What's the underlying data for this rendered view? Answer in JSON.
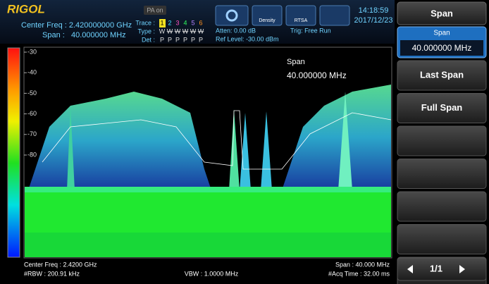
{
  "header": {
    "logo": "RIGOL",
    "center_freq": "Center Freq : 2.420000000 GHz",
    "span": "Span :   40.000000 MHz",
    "pa_button": "PA on",
    "trace": {
      "trace_label": "Trace :",
      "type_label": "Type :",
      "det_label": "Det :",
      "numbers": [
        "1",
        "2",
        "3",
        "4",
        "5",
        "6"
      ],
      "types": [
        "W",
        "W",
        "W",
        "W",
        "W",
        "W"
      ],
      "detectors": [
        "P",
        "P",
        "P",
        "P",
        "P",
        "P"
      ]
    },
    "atten": "Atten: 0.00 dB",
    "ref_level": "Ref Level: -30.00 dBm",
    "trigger": "Trig: Free Run",
    "mode_buttons": [
      "Density",
      "RTSA"
    ],
    "time": "14:18:59",
    "date": "2017/12/23"
  },
  "plot": {
    "y_labels": [
      "-30",
      "-40",
      "-50",
      "-60",
      "-70",
      "-80"
    ],
    "marker_title": "Span",
    "marker_value": "40.000000 MHz"
  },
  "footer": {
    "center_freq": "Center Freq : 2.4200 GHz",
    "rbw": "#RBW : 200.91 kHz",
    "vbw": "VBW : 1.0000 MHz",
    "span": "Span : 40.000 MHz",
    "acq_time": "#Acq Time : 32.00 ms"
  },
  "menu": {
    "title": "Span",
    "active_label": "Span",
    "active_value": "40.000000 MHz",
    "items": [
      "Last Span",
      "Full Span"
    ],
    "page": "1/1"
  }
}
